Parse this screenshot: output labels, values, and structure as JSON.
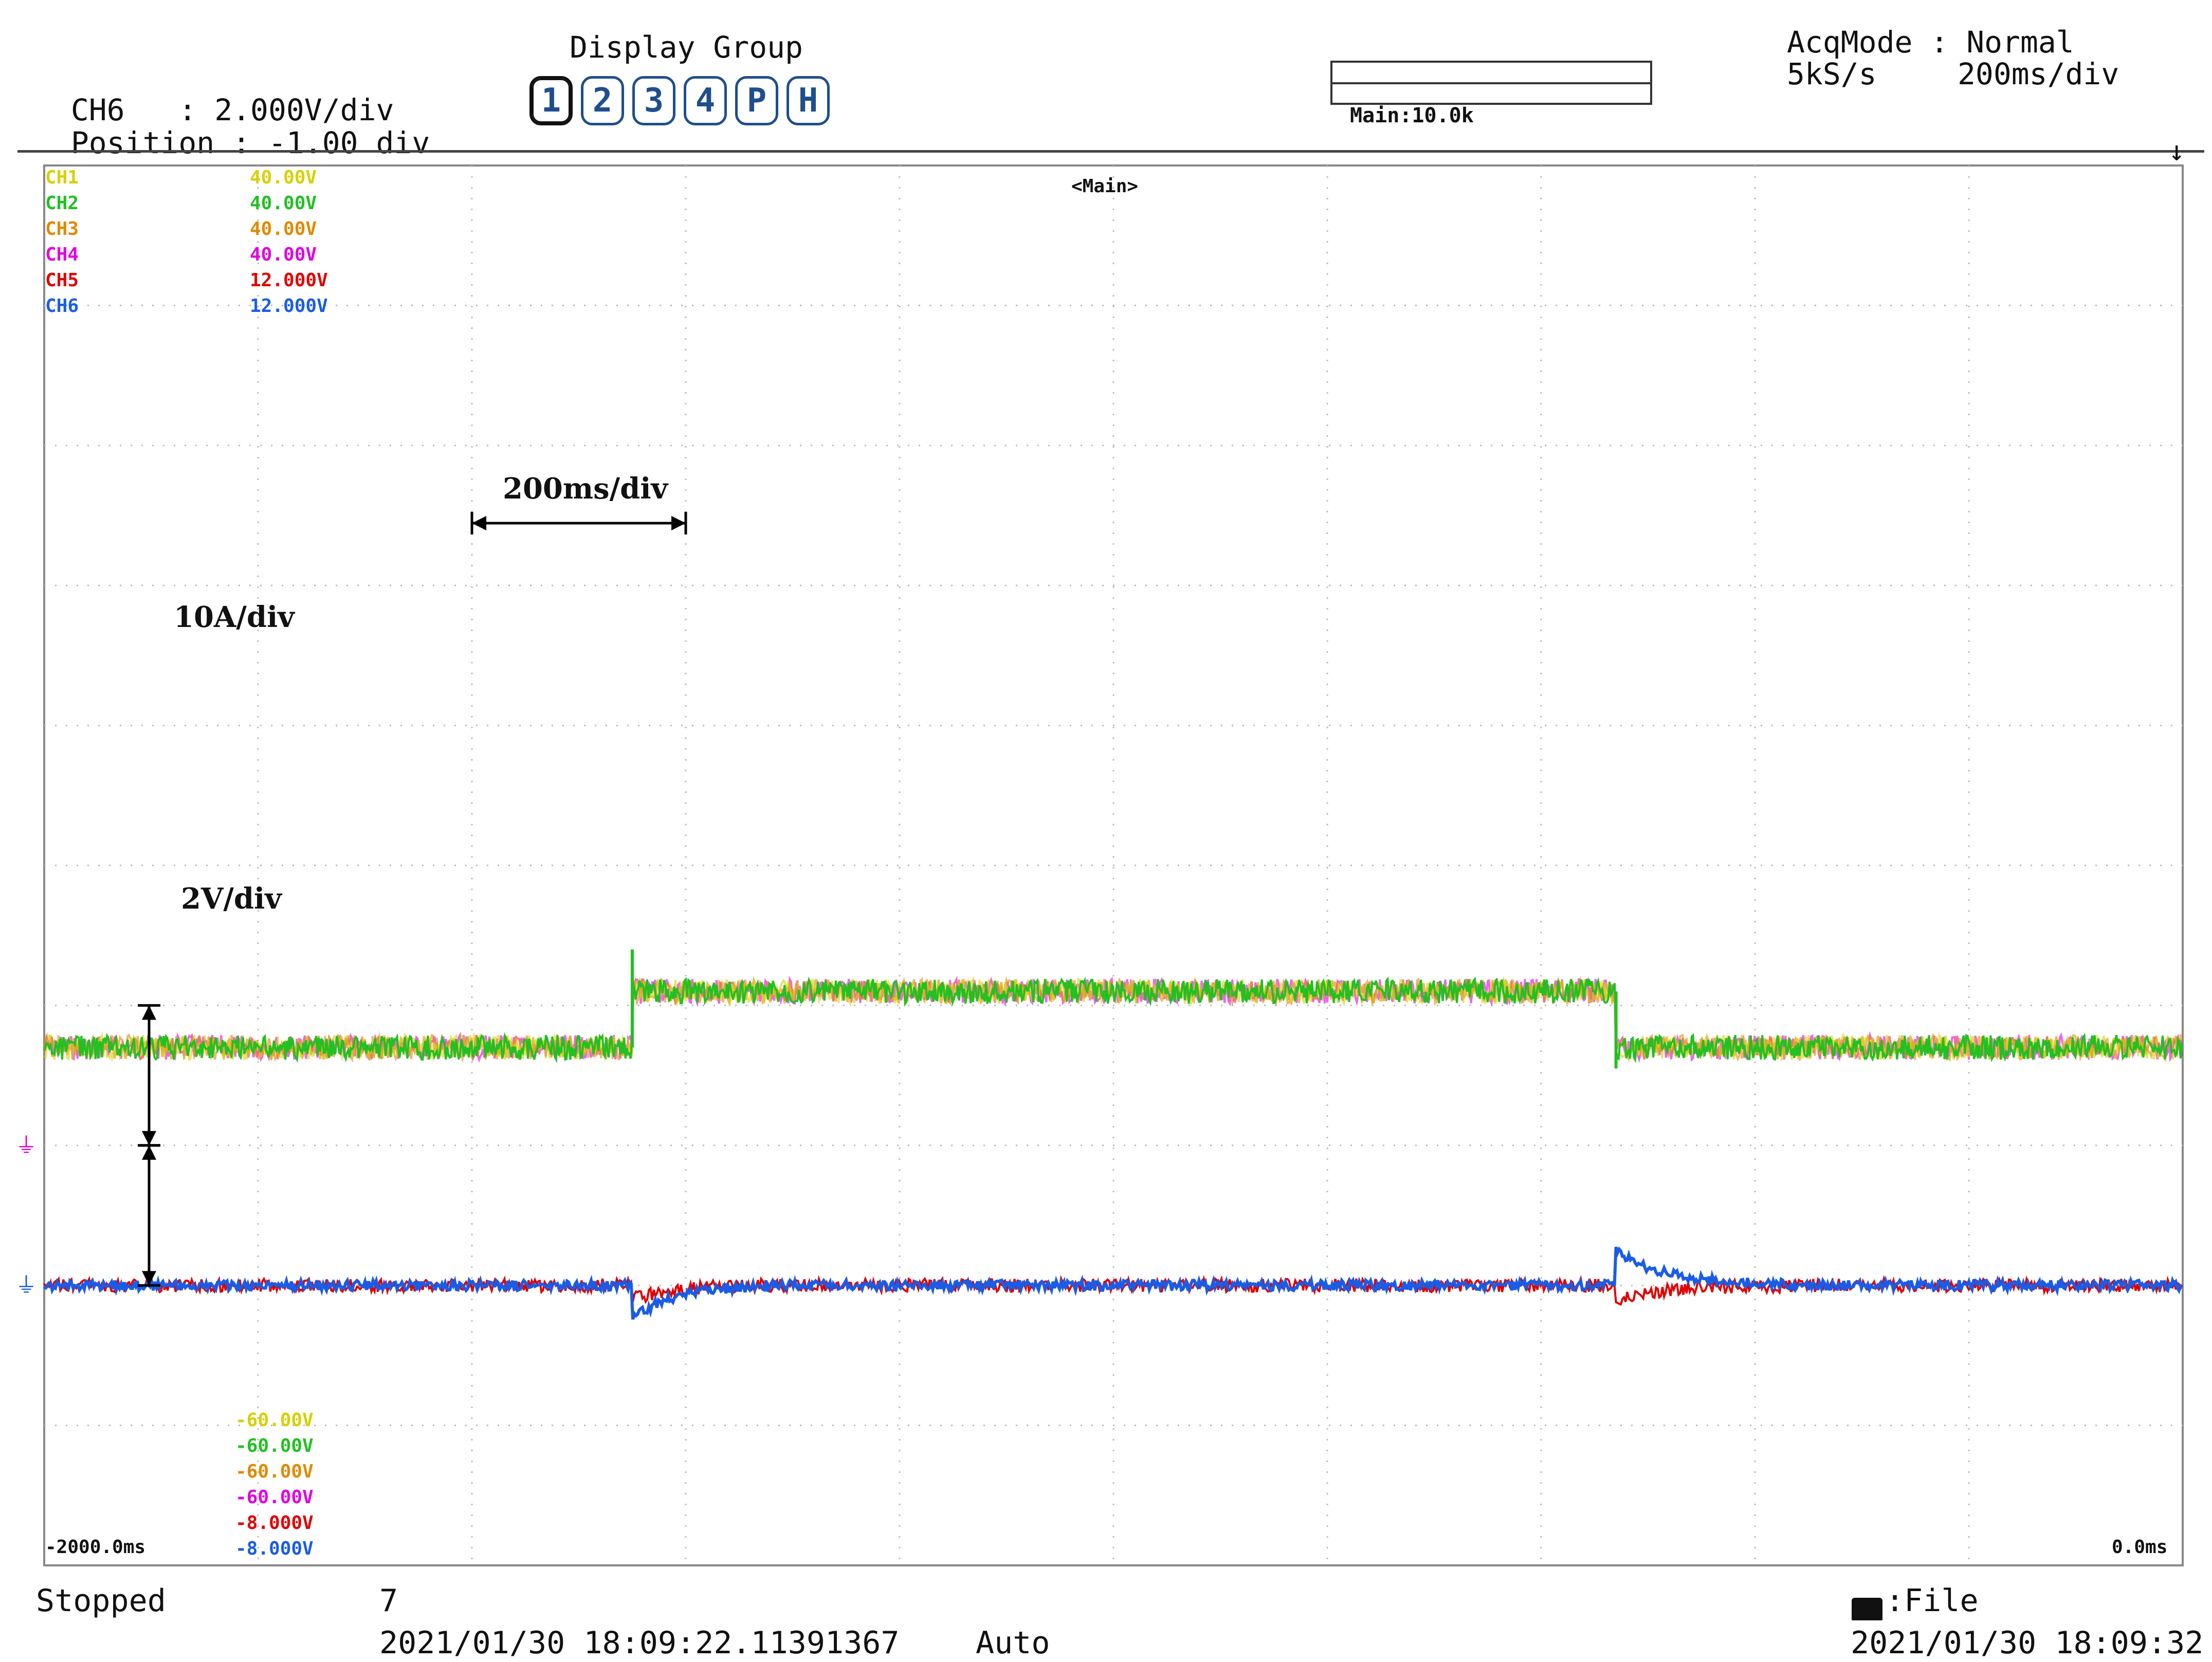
{
  "header": {
    "channel": "CH6",
    "volts_div_label": ": 2.000V/div",
    "position_label": "Position",
    "position_value": ": -1.00 div",
    "display_group_label": "Display Group",
    "display_group_buttons": [
      "1",
      "2",
      "3",
      "4",
      "P",
      "H"
    ],
    "zoom_label": "Main:10.0k",
    "acqmode_label": "AcqMode : Normal",
    "sample_rate": "5kS/s",
    "time_div": "200ms/div"
  },
  "screen": {
    "main_label": "<Main>",
    "channels": [
      {
        "name": "CH1",
        "upper": "40.00V",
        "lower": "-60.00V",
        "color": "#d8d000"
      },
      {
        "name": "CH2",
        "upper": "40.00V",
        "lower": "-60.00V",
        "color": "#22c022"
      },
      {
        "name": "CH3",
        "upper": "40.00V",
        "lower": "-60.00V",
        "color": "#e08a00"
      },
      {
        "name": "CH4",
        "upper": "40.00V",
        "lower": "-60.00V",
        "color": "#e000e0"
      },
      {
        "name": "CH5",
        "upper": "12.000V",
        "lower": "-8.000V",
        "color": "#e00000"
      },
      {
        "name": "CH6",
        "upper": "12.000V",
        "lower": "-8.000V",
        "color": "#1a5ce6"
      }
    ],
    "time_left": "-2000.0ms",
    "time_right": "0.0ms",
    "annotations": {
      "time_scale": "200ms/div",
      "current_scale": "10A/div",
      "voltage_scale": "2V/div"
    }
  },
  "footer": {
    "status": "Stopped",
    "count": "7",
    "trigger_time": "2021/01/30 18:09:22.11391367",
    "trigger_mode": "Auto",
    "save_label": ":File",
    "current_time": "2021/01/30 18:09:32"
  },
  "chart_data": {
    "type": "line",
    "x_range_ms": [
      -2000,
      0
    ],
    "grid": true,
    "series": [
      {
        "name": "CH2",
        "segments": [
          {
            "t0": -2000,
            "t1": -1450,
            "div": 3.7
          },
          {
            "t0": -1450,
            "t1": -530,
            "div": 4.1
          },
          {
            "t0": -530,
            "t1": 0,
            "div": 3.7
          }
        ]
      },
      {
        "name": "CH6",
        "baseline_div": 2.0,
        "events": [
          {
            "t": -1450,
            "dip_div": -0.25
          },
          {
            "t": -530,
            "peak_div": 0.25
          }
        ]
      },
      {
        "name": "CH5",
        "baseline_div": 2.0,
        "events": [
          {
            "t": -1450,
            "dip_div": -0.1
          },
          {
            "t": -530,
            "peak_div": -0.1
          }
        ]
      }
    ]
  }
}
